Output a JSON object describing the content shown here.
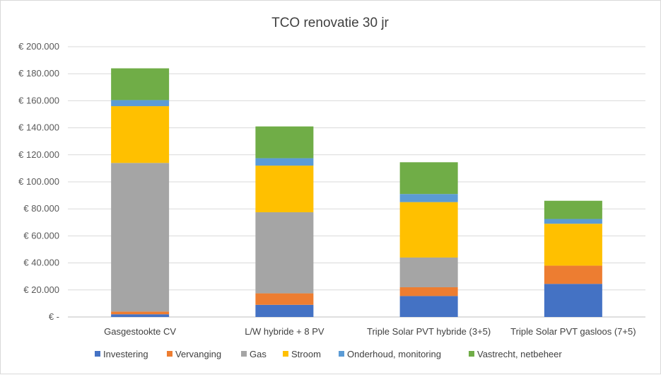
{
  "chart_data": {
    "type": "bar",
    "stacked": true,
    "title": "TCO renovatie 30 jr",
    "xlabel": "",
    "ylabel": "",
    "ylim": [
      0,
      200000
    ],
    "ytick_step": 20000,
    "ytick_labels": [
      "€ -",
      "€ 20.000",
      "€ 40.000",
      "€ 60.000",
      "€ 80.000",
      "€ 100.000",
      "€ 120.000",
      "€ 140.000",
      "€ 160.000",
      "€ 180.000",
      "€ 200.000"
    ],
    "grid": true,
    "legend_position": "bottom",
    "categories": [
      "Gasgestookte CV",
      "L/W hybride + 8 PV",
      "Triple Solar PVT hybride (3+5)",
      "Triple Solar PVT gasloos (7+5)"
    ],
    "series": [
      {
        "name": "Investering",
        "color": "#4472c4",
        "values": [
          2000,
          9000,
          15500,
          24500
        ]
      },
      {
        "name": "Vervanging",
        "color": "#ed7d31",
        "values": [
          2000,
          8500,
          6500,
          13500
        ]
      },
      {
        "name": "Gas",
        "color": "#a5a5a5",
        "values": [
          110000,
          60000,
          22000,
          0
        ]
      },
      {
        "name": "Stroom",
        "color": "#ffc000",
        "values": [
          42000,
          34500,
          41000,
          31000
        ]
      },
      {
        "name": "Onderhoud, monitoring",
        "color": "#5b9bd5",
        "values": [
          4500,
          5500,
          6000,
          3500
        ]
      },
      {
        "name": "Vastrecht, netbeheer",
        "color": "#70ad47",
        "values": [
          23500,
          23500,
          23500,
          13500
        ]
      }
    ]
  }
}
